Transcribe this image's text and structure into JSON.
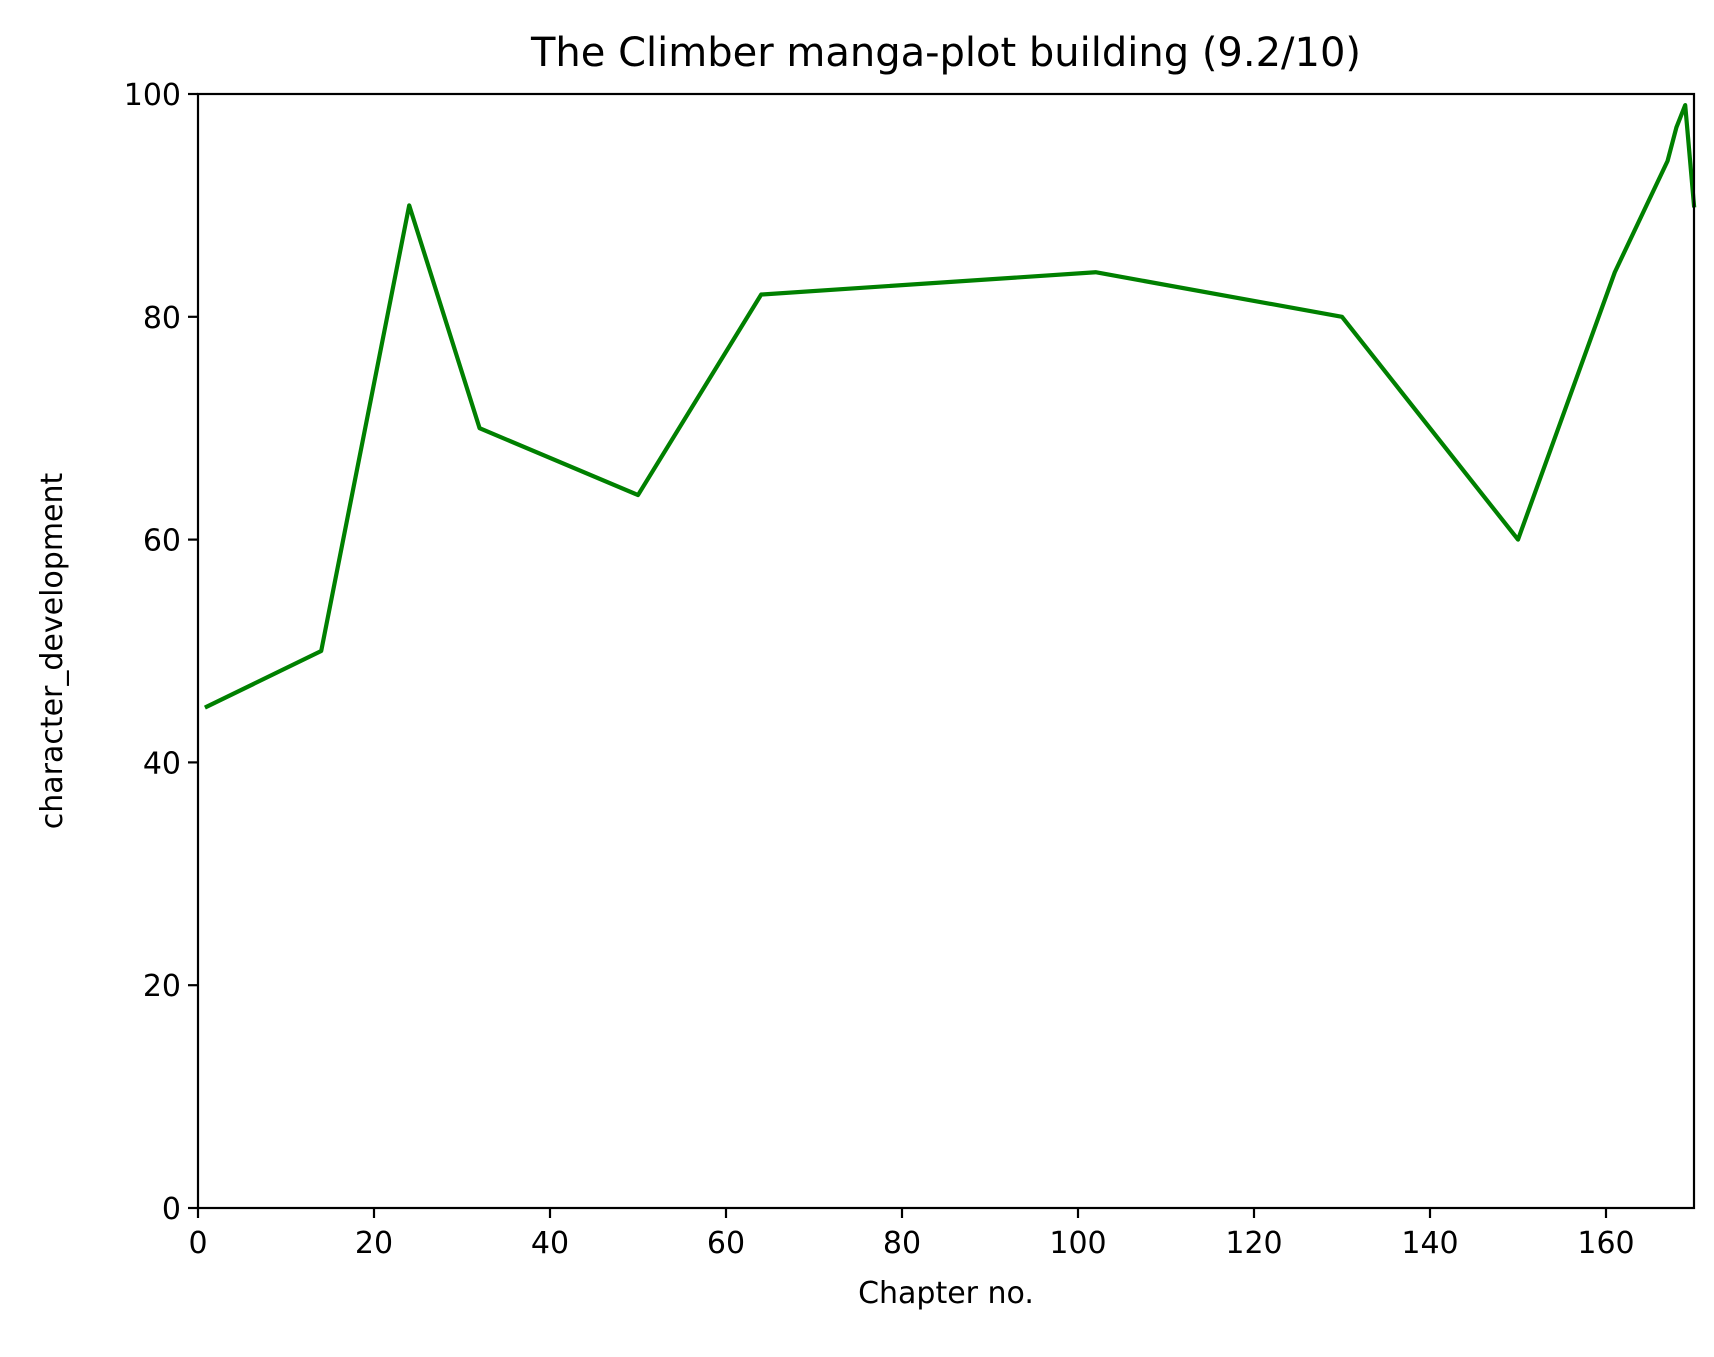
{
  "chart_data": {
    "type": "line",
    "title": "The Climber manga-plot building (9.2/10)",
    "xlabel": "Chapter no.",
    "ylabel": "character_development",
    "xlim": [
      0,
      170
    ],
    "ylim": [
      0,
      100
    ],
    "xticks": [
      0,
      20,
      40,
      60,
      80,
      100,
      120,
      140,
      160
    ],
    "yticks": [
      0,
      20,
      40,
      60,
      80,
      100
    ],
    "grid": false,
    "line_color": "#008000",
    "series": [
      {
        "x": [
          1,
          14,
          24,
          32,
          50,
          64,
          102,
          130,
          150,
          161,
          167,
          168,
          169,
          170
        ],
        "y": [
          45,
          50,
          90,
          70,
          64,
          82,
          84,
          80,
          60,
          84,
          94,
          97,
          99,
          90
        ]
      }
    ]
  }
}
